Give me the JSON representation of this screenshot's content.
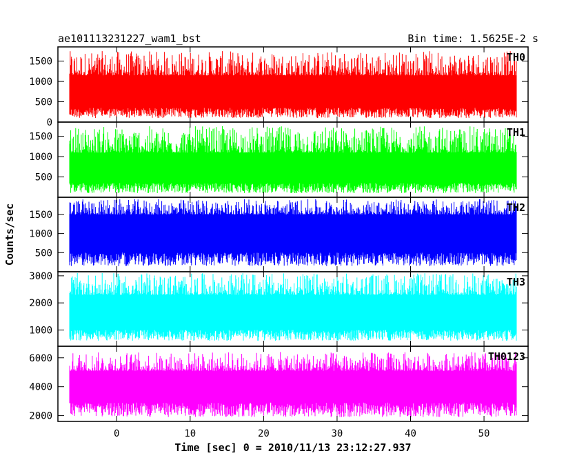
{
  "chart_data": {
    "type": "line",
    "title_left": "ae101113231227_wam1_bst",
    "title_right": "Bin time: 1.5625E-2 s",
    "xlabel": "Time [sec] 0 = 2010/11/13 23:12:27.937",
    "ylabel": "Counts/sec",
    "xlim": [
      -8,
      56
    ],
    "xticks": [
      0,
      10,
      20,
      30,
      40,
      50
    ],
    "data_x_range": [
      -8,
      56
    ],
    "panels": [
      {
        "name": "TH0",
        "color": "#ff0000",
        "ylim": [
          0,
          1850
        ],
        "yticks": [
          0,
          500,
          1000,
          1500
        ],
        "band": {
          "min": 100,
          "low": 350,
          "high": 1150,
          "max": 1750
        }
      },
      {
        "name": "TH1",
        "color": "#00ff00",
        "ylim": [
          0,
          1850
        ],
        "yticks": [
          500,
          1000,
          1500
        ],
        "band": {
          "min": 100,
          "low": 350,
          "high": 1100,
          "max": 1750
        }
      },
      {
        "name": "TH2",
        "color": "#0000ff",
        "ylim": [
          0,
          1950
        ],
        "yticks": [
          500,
          1000,
          1500
        ],
        "band": {
          "min": 150,
          "low": 500,
          "high": 1500,
          "max": 1900
        }
      },
      {
        "name": "TH3",
        "color": "#00ffff",
        "ylim": [
          400,
          3150
        ],
        "yticks": [
          1000,
          2000,
          3000
        ],
        "band": {
          "min": 600,
          "low": 1000,
          "high": 2300,
          "max": 3100
        }
      },
      {
        "name": "TH0123",
        "color": "#ff00ff",
        "ylim": [
          1600,
          6800
        ],
        "yticks": [
          2000,
          4000,
          6000
        ],
        "band": {
          "min": 1900,
          "low": 2900,
          "high": 5100,
          "max": 6400
        }
      }
    ]
  }
}
